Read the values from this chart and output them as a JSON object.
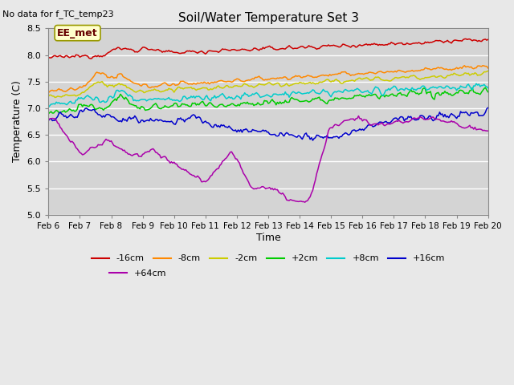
{
  "title": "Soil/Water Temperature Set 3",
  "top_left_text": "No data for f_TC_temp23",
  "xlabel": "Time",
  "ylabel": "Temperature (C)",
  "ylim": [
    5.0,
    8.5
  ],
  "xlim": [
    0,
    336
  ],
  "xtick_labels": [
    "Feb 6",
    "Feb 7",
    "Feb 8",
    "Feb 9",
    "Feb 10",
    "Feb 11",
    "Feb 12",
    "Feb 13",
    "Feb 14",
    "Feb 15",
    "Feb 16",
    "Feb 17",
    "Feb 18",
    "Feb 19",
    "Feb 20"
  ],
  "xtick_positions": [
    0,
    24,
    48,
    72,
    96,
    120,
    144,
    168,
    192,
    216,
    240,
    264,
    288,
    312,
    336
  ],
  "series_labels": [
    "-16cm",
    "-8cm",
    "-2cm",
    "+2cm",
    "+8cm",
    "+16cm",
    "+64cm"
  ],
  "series_colors": [
    "#cc0000",
    "#ff8800",
    "#cccc00",
    "#00cc00",
    "#00cccc",
    "#0000cc",
    "#aa00aa"
  ],
  "legend_box_text": "EE_met",
  "fig_bg_color": "#e8e8e8",
  "plot_bg_color": "#d4d4d4",
  "grid_color": "#ffffff"
}
